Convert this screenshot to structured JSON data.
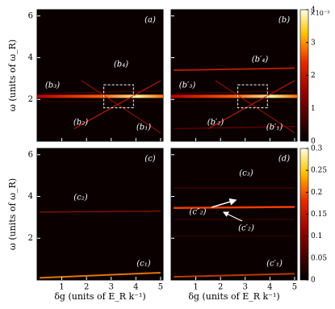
{
  "figure": {
    "axes": {
      "y_label": "ω (units of ω_R)",
      "x_label": "δg (units of E_R k⁻¹)",
      "xlim": [
        0,
        5.1
      ],
      "xticks": [
        1,
        2,
        3,
        4,
        5
      ],
      "ylim": [
        0,
        6.3
      ],
      "yticks": [
        2,
        4,
        6
      ]
    },
    "panels": [
      {
        "label": "(a)",
        "annotations": [
          "(b₄)",
          "(b₃)",
          "(b₂)",
          "(b₁)"
        ]
      },
      {
        "label": "(b)",
        "annotations": [
          "(b′₄)",
          "(b′₃)",
          "(b′₂)",
          "(b′₁)"
        ]
      },
      {
        "label": "(c)",
        "annotations": [
          "(c₂)",
          "(c₁)"
        ]
      },
      {
        "label": "(d)",
        "annotations": [
          "(c₃)",
          "(c″₂)",
          "(c′₂)",
          "(c′₁)"
        ]
      }
    ],
    "colorbars": [
      {
        "multiplier": "×10⁻³",
        "lim": [
          0,
          4
        ],
        "ticks": [
          0,
          1,
          2,
          3,
          4
        ]
      },
      {
        "lim": [
          0,
          0.3
        ],
        "ticks": [
          0,
          0.05,
          0.1,
          0.15,
          0.2,
          0.25,
          0.3
        ]
      }
    ]
  }
}
